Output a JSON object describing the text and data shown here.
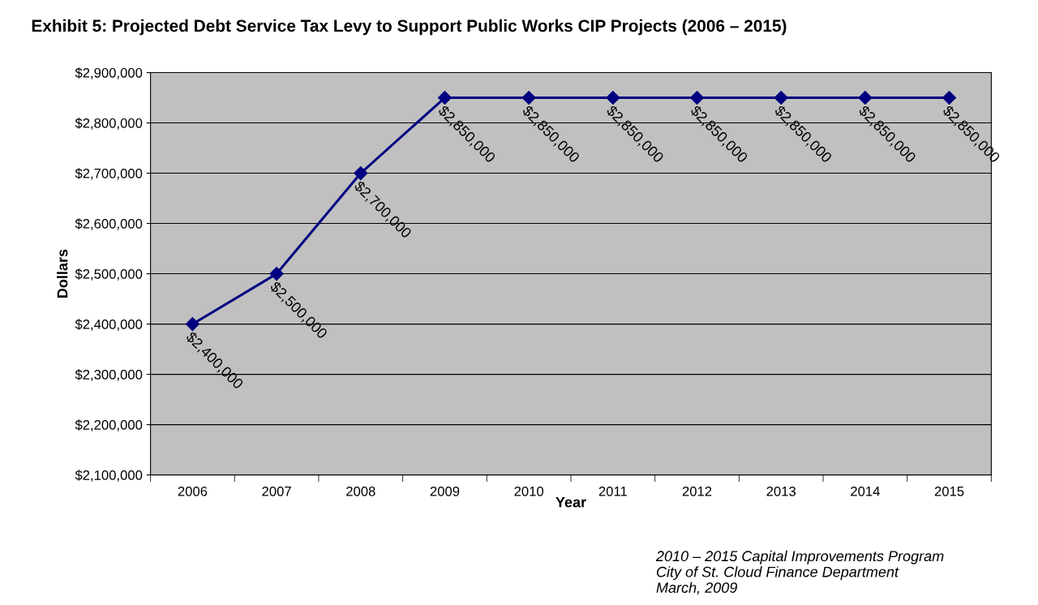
{
  "chart_data": {
    "type": "line",
    "title": "Exhibit 5: Projected Debt Service Tax Levy to Support Public Works CIP Projects (2006 – 2015)",
    "xlabel": "Year",
    "ylabel": "Dollars",
    "categories": [
      "2006",
      "2007",
      "2008",
      "2009",
      "2010",
      "2011",
      "2012",
      "2013",
      "2014",
      "2015"
    ],
    "series": [
      {
        "color": "#000080",
        "values": [
          2400000,
          2500000,
          2700000,
          2850000,
          2850000,
          2850000,
          2850000,
          2850000,
          2850000,
          2850000
        ],
        "value_labels": [
          "$2,400,000",
          "$2,500,000",
          "$2,700,000",
          "$2,850,000",
          "$2,850,000",
          "$2,850,000",
          "$2,850,000",
          "$2,850,000",
          "$2,850,000",
          "$2,850,000"
        ]
      }
    ],
    "ylim": [
      2100000,
      2900000
    ],
    "yticks": [
      {
        "value": 2100000,
        "label": "$2,100,000"
      },
      {
        "value": 2200000,
        "label": "$2,200,000"
      },
      {
        "value": 2300000,
        "label": "$2,300,000"
      },
      {
        "value": 2400000,
        "label": "$2,400,000"
      },
      {
        "value": 2500000,
        "label": "$2,500,000"
      },
      {
        "value": 2600000,
        "label": "$2,600,000"
      },
      {
        "value": 2700000,
        "label": "$2,700,000"
      },
      {
        "value": 2800000,
        "label": "$2,800,000"
      },
      {
        "value": 2900000,
        "label": "$2,900,000"
      }
    ],
    "grid": "y",
    "marker": "diamond",
    "line_style": "solid",
    "legend": false,
    "annotations": [
      "2010 – 2015 Capital Improvements Program\nCity of St. Cloud Finance Department\nMarch, 2009"
    ]
  }
}
